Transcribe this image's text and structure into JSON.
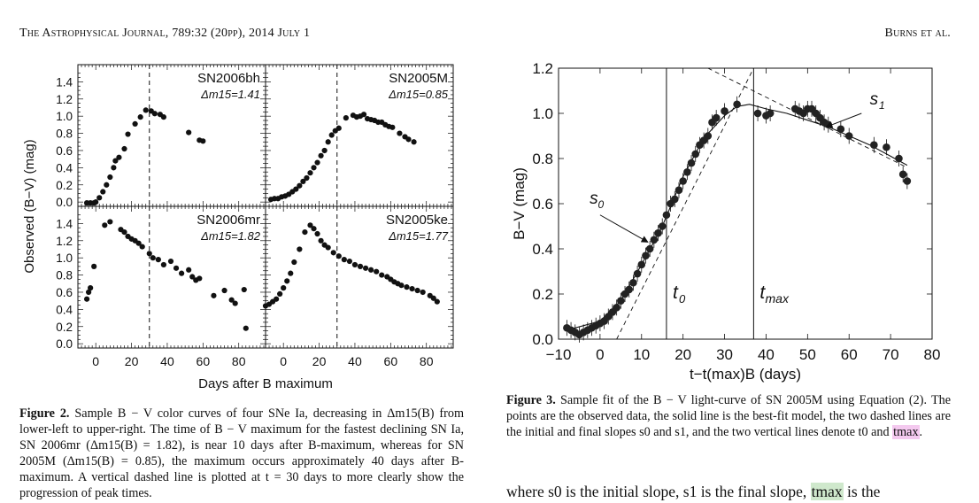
{
  "header": {
    "left": "The Astrophysical Journal, 789:32 (20pp), 2014 July 1",
    "right": "Burns et al."
  },
  "figure2": {
    "ylabel": "Observed (B−V) (mag)",
    "xlabel": "Days after B maximum",
    "caption": {
      "label": "Figure 2.",
      "text": "Sample B − V color curves of four SNe Ia, decreasing in Δm15(B) from lower-left to upper-right. The time of B − V maximum for the fastest declining SN Ia, SN 2006mr (Δm15(B) = 1.82), is near 10 days after B-maximum, whereas for SN 2005M (Δm15(B) = 0.85), the maximum occurs approximately 40 days after B-maximum. A vertical dashed line is plotted at t = 30 days to more clearly show the progression of peak times."
    }
  },
  "figure3": {
    "caption": {
      "label": "Figure 3.",
      "text_before": "Sample fit of the B − V light-curve of SN 2005M using Equation (2). The points are the observed data, the solid line is the best-fit model, the two dashed lines are the initial and final slopes s0 and s1, and the two vertical lines denote t0 and ",
      "highlight": "tmax",
      "text_after": "."
    }
  },
  "body_text": {
    "before": "where s0 is the initial slope, s1 is the final slope, ",
    "highlight": "tmax",
    "after": " is the"
  },
  "chart_data": [
    {
      "type": "scatter",
      "title": "",
      "panels": [
        {
          "name": "SN2006bh",
          "annotation": "Δm15=1.41",
          "position": "top-left",
          "x": [
            -5,
            -3,
            -1,
            0,
            2,
            4,
            6,
            8,
            10,
            11,
            13,
            16,
            18,
            22,
            25,
            28,
            31,
            33,
            36,
            38,
            52,
            58,
            60
          ],
          "y": [
            -0.01,
            -0.01,
            -0.01,
            0.0,
            0.05,
            0.12,
            0.2,
            0.29,
            0.4,
            0.48,
            0.52,
            0.62,
            0.79,
            0.91,
            0.99,
            1.07,
            1.06,
            1.03,
            1.02,
            0.99,
            0.81,
            0.72,
            0.71
          ]
        },
        {
          "name": "SN2005M",
          "annotation": "Δm15=0.85",
          "position": "top-right",
          "x": [
            -7,
            -5,
            -3,
            -1,
            1,
            3,
            5,
            7,
            9,
            11,
            13,
            15,
            17,
            19,
            21,
            23,
            25,
            27,
            29,
            31,
            35,
            39,
            41,
            43,
            45,
            47,
            49,
            51,
            53,
            55,
            57,
            59,
            61,
            65,
            68,
            70,
            73
          ],
          "y": [
            0.03,
            0.04,
            0.04,
            0.06,
            0.07,
            0.09,
            0.12,
            0.15,
            0.19,
            0.24,
            0.28,
            0.34,
            0.4,
            0.46,
            0.54,
            0.6,
            0.7,
            0.78,
            0.83,
            0.86,
            0.98,
            1.01,
            0.99,
            1.0,
            1.02,
            0.97,
            0.96,
            0.95,
            0.93,
            0.93,
            0.9,
            0.88,
            0.87,
            0.8,
            0.76,
            0.73,
            0.7
          ]
        },
        {
          "name": "SN2006mr",
          "annotation": "Δm15=1.82",
          "position": "bottom-left",
          "x": [
            -5,
            -4,
            -3,
            -1,
            5,
            8,
            14,
            16,
            18,
            20,
            22,
            24,
            26,
            30,
            32,
            35,
            38,
            42,
            45,
            48,
            52,
            54,
            56,
            58,
            66,
            72,
            76,
            78,
            83,
            84
          ],
          "y": [
            0.52,
            0.6,
            0.65,
            0.9,
            1.38,
            1.42,
            1.33,
            1.3,
            1.25,
            1.22,
            1.2,
            1.17,
            1.13,
            1.05,
            1.0,
            0.98,
            0.92,
            0.96,
            0.88,
            0.82,
            0.86,
            0.78,
            0.74,
            0.76,
            0.56,
            0.62,
            0.51,
            0.47,
            0.63,
            0.18
          ]
        },
        {
          "name": "SN2005ke",
          "annotation": "Δm15=1.77",
          "position": "bottom-right",
          "x": [
            -10,
            -8,
            -6,
            -4,
            -2,
            0,
            2,
            4,
            6,
            9,
            12,
            15,
            17,
            19,
            21,
            23,
            25,
            28,
            31,
            34,
            37,
            40,
            43,
            46,
            49,
            52,
            55,
            58,
            60,
            62,
            64,
            66,
            69,
            72,
            75,
            78,
            82,
            84,
            86
          ],
          "y": [
            0.44,
            0.46,
            0.49,
            0.52,
            0.58,
            0.65,
            0.73,
            0.82,
            0.95,
            1.1,
            1.3,
            1.38,
            1.34,
            1.28,
            1.2,
            1.15,
            1.12,
            1.06,
            1.02,
            0.98,
            0.96,
            0.92,
            0.9,
            0.88,
            0.86,
            0.84,
            0.8,
            0.78,
            0.75,
            0.72,
            0.7,
            0.68,
            0.66,
            0.64,
            0.62,
            0.6,
            0.56,
            0.53,
            0.49
          ]
        }
      ],
      "x_ticks": [
        0,
        20,
        40,
        60,
        80
      ],
      "y_ticks": [
        0.0,
        0.2,
        0.4,
        0.6,
        0.8,
        1.0,
        1.2,
        1.4
      ],
      "xlim": [
        -10,
        95
      ],
      "ylim": [
        -0.05,
        1.6
      ],
      "vline_dashed": 30,
      "xlabel": "Days after B maximum",
      "ylabel": "Observed (B−V) (mag)"
    },
    {
      "type": "scatter",
      "title": "",
      "x": [
        -8,
        -7,
        -6,
        -5,
        -4,
        -3,
        -2,
        -1,
        0,
        1,
        2,
        3,
        4,
        5,
        6,
        7,
        8,
        9,
        10,
        11,
        12,
        13,
        14,
        15,
        16,
        17,
        18,
        19,
        20,
        21,
        22,
        23,
        24,
        25,
        26,
        27,
        28,
        30,
        33,
        38,
        40,
        41,
        47,
        48,
        49,
        50,
        51,
        52,
        53,
        54,
        55,
        58,
        60,
        66,
        69,
        72,
        73,
        74
      ],
      "y": [
        0.05,
        0.04,
        0.03,
        0.02,
        0.03,
        0.04,
        0.05,
        0.06,
        0.07,
        0.08,
        0.1,
        0.12,
        0.14,
        0.17,
        0.2,
        0.22,
        0.25,
        0.29,
        0.33,
        0.37,
        0.4,
        0.44,
        0.47,
        0.5,
        0.55,
        0.6,
        0.62,
        0.66,
        0.7,
        0.74,
        0.78,
        0.82,
        0.86,
        0.88,
        0.9,
        0.96,
        0.98,
        1.01,
        1.04,
        1.0,
        0.99,
        1.0,
        1.02,
        1.01,
        1.0,
        1.02,
        1.02,
        1.0,
        0.98,
        0.96,
        0.95,
        0.93,
        0.9,
        0.86,
        0.85,
        0.8,
        0.73,
        0.7
      ],
      "model_points": [
        [
          -8,
          0.04
        ],
        [
          0,
          0.08
        ],
        [
          5,
          0.17
        ],
        [
          10,
          0.33
        ],
        [
          15,
          0.5
        ],
        [
          20,
          0.72
        ],
        [
          25,
          0.89
        ],
        [
          30,
          0.99
        ],
        [
          33,
          1.03
        ],
        [
          36,
          1.04
        ],
        [
          40,
          1.02
        ],
        [
          45,
          1.0
        ],
        [
          50,
          0.97
        ],
        [
          55,
          0.94
        ],
        [
          60,
          0.9
        ],
        [
          65,
          0.86
        ],
        [
          70,
          0.81
        ],
        [
          74,
          0.77
        ]
      ],
      "slopes": [
        {
          "name": "s0",
          "points": [
            [
              4,
              0.0
            ],
            [
              37,
              1.2
            ]
          ]
        },
        {
          "name": "s1",
          "points": [
            [
              26,
              1.2
            ],
            [
              74,
              0.76
            ]
          ]
        }
      ],
      "vlines": [
        {
          "name": "t0",
          "x": 16
        },
        {
          "name": "tmax",
          "x": 37
        }
      ],
      "x_ticks": [
        -10,
        0,
        10,
        20,
        30,
        40,
        50,
        60,
        70,
        80
      ],
      "y_ticks": [
        0.0,
        0.2,
        0.4,
        0.6,
        0.8,
        1.0,
        1.2
      ],
      "xlim": [
        -10,
        80
      ],
      "ylim": [
        0,
        1.2
      ],
      "xlabel": "t−t(max)B (days)",
      "ylabel": "B−V (mag)",
      "labels": {
        "s0": "s0",
        "s1": "s1",
        "t0": "t0",
        "tmax": "tmax"
      }
    }
  ]
}
